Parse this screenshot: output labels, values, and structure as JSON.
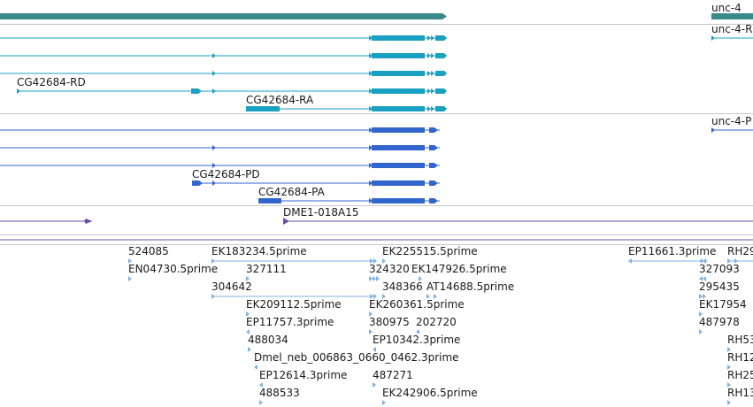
{
  "colors": {
    "gene": "#3a8a89",
    "transcript_rna": "#1aa0c0",
    "transcript_protein": "#3366cc",
    "insertion": "#6a4fa6",
    "est": "#7fb3e0",
    "separator": "#c8c8c8"
  },
  "gene_labels": {
    "unc4": "unc-4"
  },
  "rna_labels": {
    "unc4_ra": "unc-4-R",
    "cg_rd": "CG42684-RD",
    "cg_ra": "CG42684-RA"
  },
  "protein_labels": {
    "unc4_pa": "unc-4-P",
    "cg_pd": "CG42684-PD",
    "cg_pa": "CG42684-PA"
  },
  "insertion_labels": {
    "dme1": "DME1-018A15"
  },
  "est_labels": {
    "l524085": "524085",
    "en04730": "EN04730.5prime",
    "ek183234": "EK183234.5prime",
    "l327111": "327111",
    "l304642": "304642",
    "ek209112": "EK209112.5prime",
    "ep11757": "EP11757.3prime",
    "l488034": "488034",
    "dmel_neb": "Dmel_neb_006863_0660_0462.3prime",
    "ep12614": "EP12614.3prime",
    "l488533": "488533",
    "ek225515": "EK225515.5prime",
    "l324320": "324320",
    "ek147926": "EK147926.5prime",
    "l348366": "348366",
    "at14688": "AT14688.5prime",
    "ek260361": "EK260361.5prime",
    "l380975": "380975",
    "l202720": "202720",
    "ep10342": "EP10342.3prime",
    "l487271": "487271",
    "ek242906": "EK242906.5prime",
    "ep11661": "EP11661.3prime",
    "rh29": "RH29",
    "l327093": "327093",
    "l295435": "295435",
    "ek17954": "EK17954",
    "l487978": "487978",
    "rh53": "RH53",
    "rh12": "RH12",
    "rh25": "RH25",
    "rh13": "RH13"
  }
}
